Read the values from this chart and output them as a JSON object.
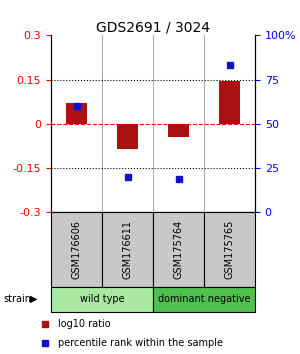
{
  "title": "GDS2691 / 3024",
  "samples": [
    "GSM176606",
    "GSM176611",
    "GSM175764",
    "GSM175765"
  ],
  "log10_ratio": [
    0.07,
    -0.085,
    -0.045,
    0.145
  ],
  "percentile_rank": [
    60,
    20,
    19,
    83
  ],
  "groups": [
    {
      "label": "wild type",
      "samples": [
        0,
        1
      ],
      "color": "#a8e8a0"
    },
    {
      "label": "dominant negative",
      "samples": [
        2,
        3
      ],
      "color": "#50c050"
    }
  ],
  "ylim_left": [
    -0.3,
    0.3
  ],
  "ylim_right": [
    0,
    100
  ],
  "yticks_left": [
    -0.3,
    -0.15,
    0,
    0.15,
    0.3
  ],
  "yticks_right": [
    0,
    25,
    50,
    75,
    100
  ],
  "ytick_labels_right": [
    "0",
    "25",
    "50",
    "75",
    "100%"
  ],
  "hlines": [
    0.15,
    -0.15
  ],
  "bar_color": "#aa1111",
  "dot_color": "#1111cc",
  "bar_width": 0.4,
  "dot_size": 5,
  "legend_bar_label": "log10 ratio",
  "legend_dot_label": "percentile rank within the sample",
  "strain_label": "strain",
  "group_label_fontsize": 7,
  "sample_label_fontsize": 7,
  "title_fontsize": 10,
  "legend_fontsize": 7,
  "bg_color": "#ffffff",
  "sample_box_color": "#c8c8c8"
}
